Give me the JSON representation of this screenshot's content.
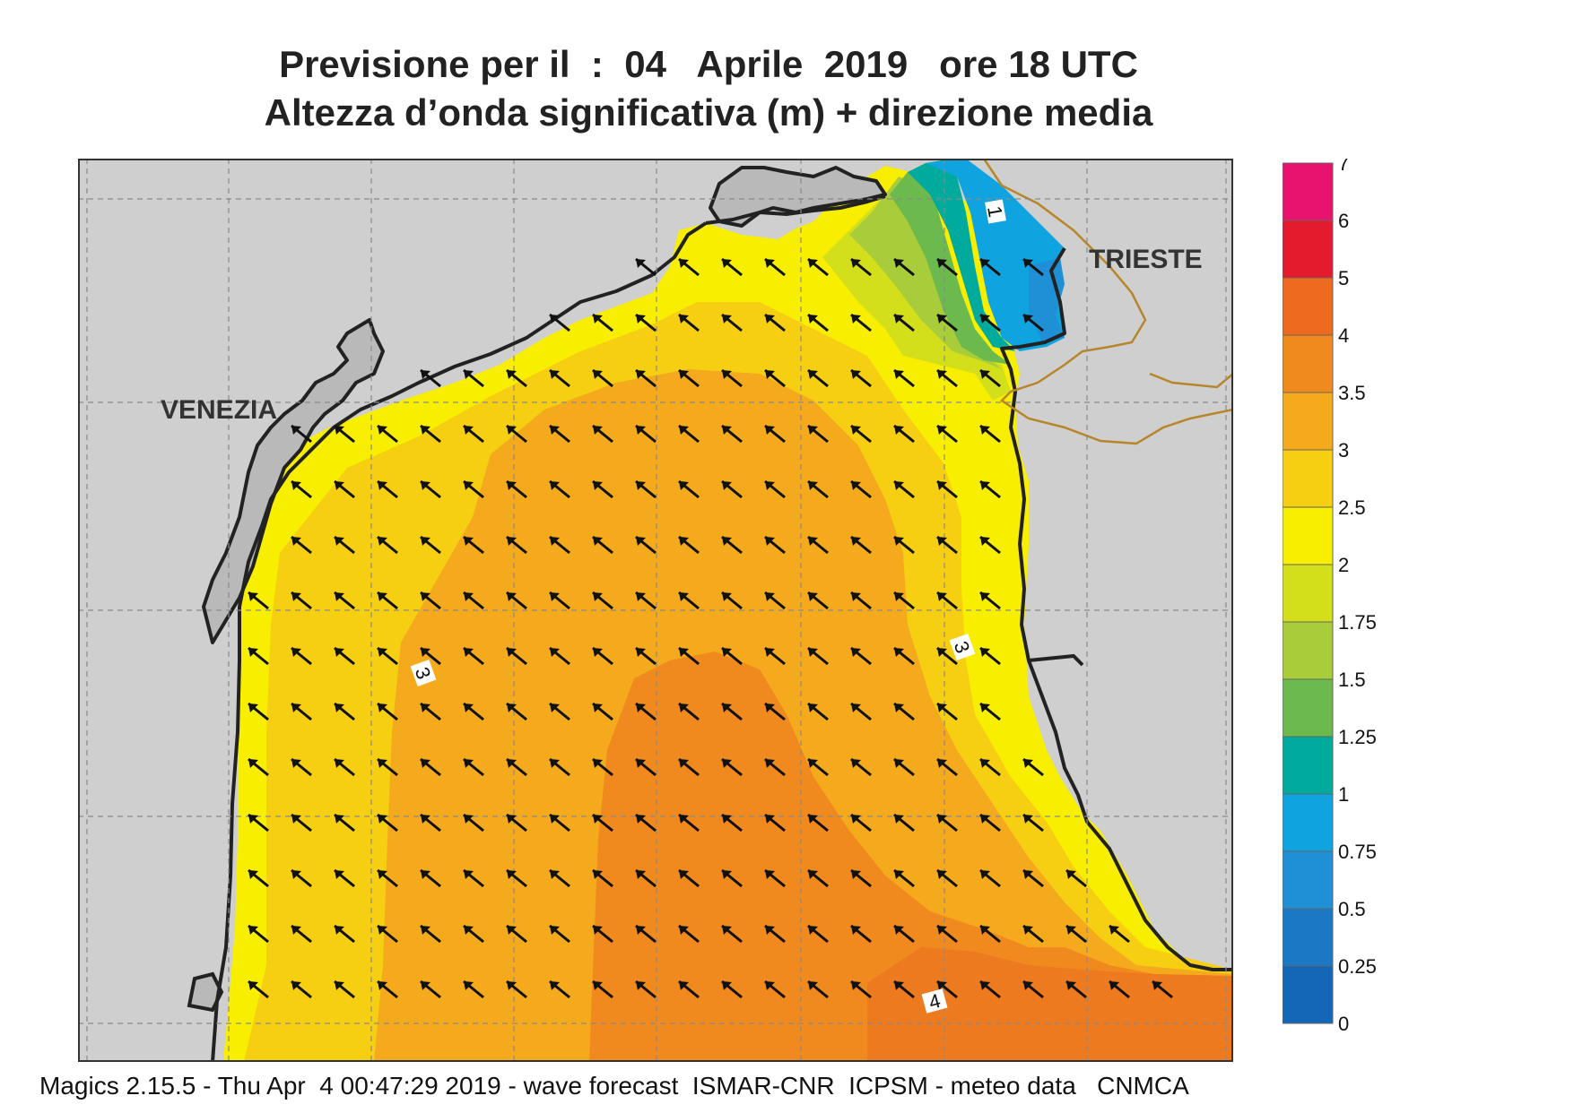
{
  "header": {
    "title_line1": "Previsione per il  :  04   Aprile  2019   ore 18 UTC",
    "title_line2": "Altezza d’onda significativa (m) + direzione media"
  },
  "footer": {
    "text": "Magics 2.15.5 - Thu Apr  4 00:47:29 2019 - wave forecast  ISMAR-CNR  ICPSM - meteo data   CNMCA"
  },
  "map": {
    "cities": [
      "VENEZIA",
      "TRIESTE"
    ],
    "contour_labels": [
      "1",
      "3",
      "3",
      "4"
    ],
    "colors": {
      "land": "#cfcfcf",
      "coast": "#222222",
      "border": "#b8862a",
      "arrow": "#111111"
    }
  },
  "colorbar": {
    "labels": [
      "7",
      "6",
      "5",
      "4",
      "3.5",
      "3",
      "2.5",
      "2",
      "1.75",
      "1.5",
      "1.25",
      "1",
      "0.75",
      "0.5",
      "0.25",
      "0"
    ],
    "colors": [
      "#e8126f",
      "#e41b2d",
      "#ee6a1f",
      "#f0891e",
      "#f4aa1c",
      "#f7cf12",
      "#f8ee00",
      "#d4df1c",
      "#a9cc3a",
      "#6cb94d",
      "#00aa9c",
      "#0fa4e0",
      "#1f8fd6",
      "#1a78c5",
      "#1466b6"
    ]
  }
}
